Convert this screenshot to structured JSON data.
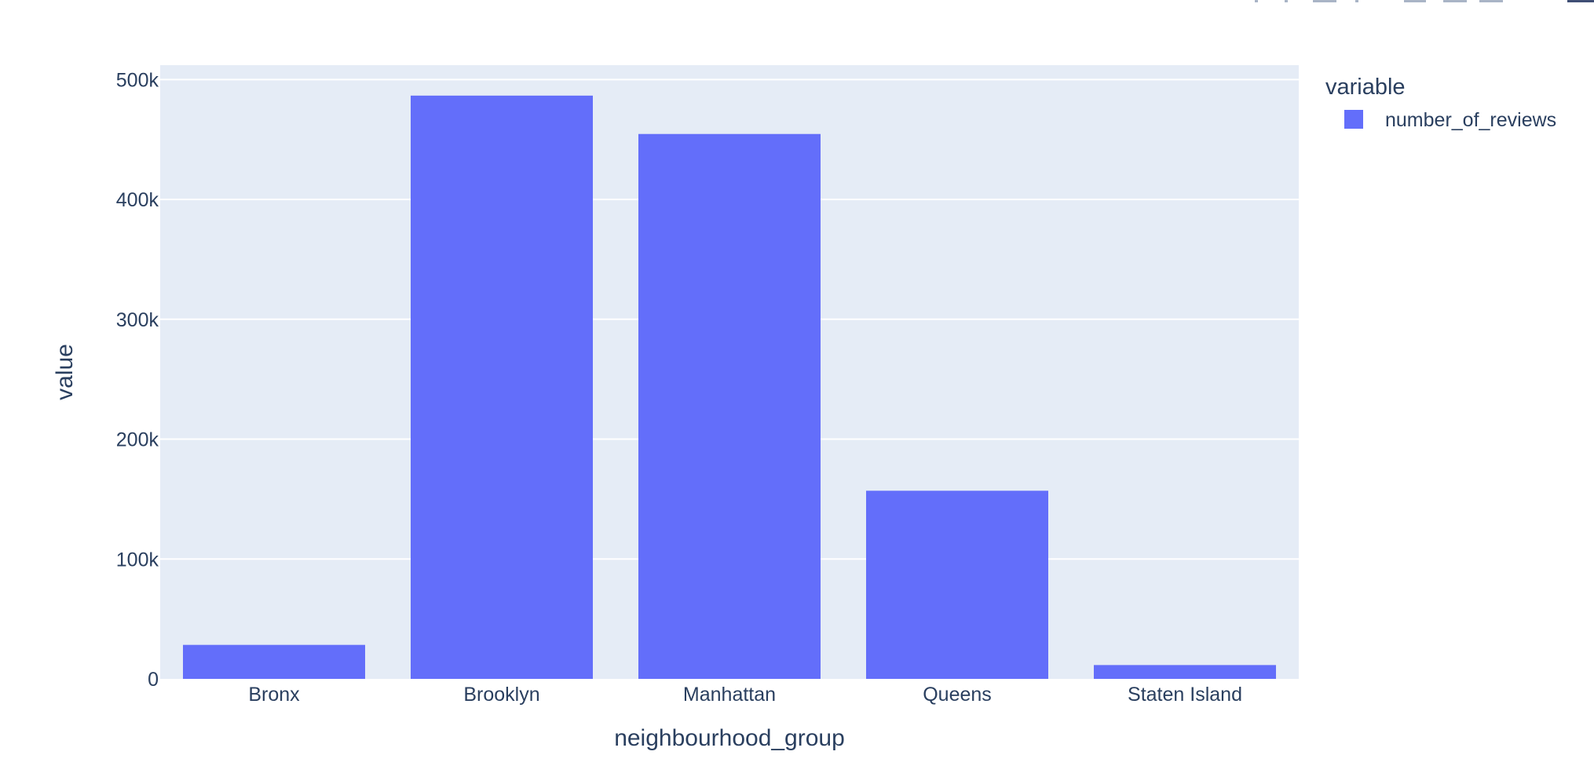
{
  "chart_data": {
    "type": "bar",
    "categories": [
      "Bronx",
      "Brooklyn",
      "Manhattan",
      "Queens",
      "Staten Island"
    ],
    "series": [
      {
        "name": "number_of_reviews",
        "values": [
          28371,
          486574,
          454569,
          156950,
          11541
        ]
      }
    ],
    "xlabel": "neighbourhood_group",
    "ylabel": "value",
    "ylim": [
      0,
      512000
    ],
    "yticks": [
      0,
      100000,
      200000,
      300000,
      400000,
      500000
    ],
    "ytick_labels": [
      "0",
      "100k",
      "200k",
      "300k",
      "400k",
      "500k"
    ],
    "legend_title": "variable",
    "legend_position": "top-right",
    "grid": true,
    "colors": {
      "bar": "#636efa",
      "plot_background": "#e5ecf6",
      "gridline": "#ffffff",
      "text": "#2a3f5f"
    }
  }
}
